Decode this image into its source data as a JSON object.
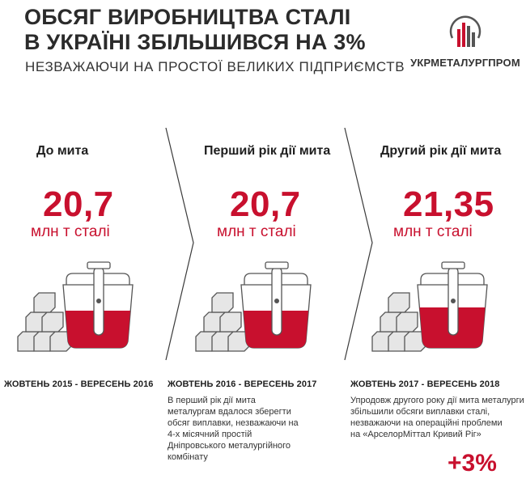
{
  "header": {
    "title_line1": "ОБСЯГ ВИРОБНИЦТВА СТАЛІ",
    "title_line2": "В УКРАЇНІ ЗБІЛЬШИВСЯ НА 3%",
    "subtitle": "НЕЗВАЖАЮЧИ НА ПРОСТОЇ ВЕЛИКИХ ПІДПРИЄМСТВ"
  },
  "logo": {
    "name": "УКРМЕТАЛУРГПРОМ",
    "icon": "ukrmetalurgprom-logo-icon",
    "color": "#c8102e"
  },
  "columns": [
    {
      "title": "До мита",
      "value": "20,7",
      "unit": "млн т сталі",
      "period": "ЖОВТЕНЬ 2015 - ВЕРЕСЕНЬ 2016",
      "description": []
    },
    {
      "title": "Перший рік дії мита",
      "value": "20,7",
      "unit": "млн т сталі",
      "period": "ЖОВТЕНЬ 2016 - ВЕРЕСЕНЬ 2017",
      "description": [
        "В перший рік дії мита",
        "металургам вдалося зберегти",
        "обсяг виплавки, незважаючи на",
        "4-х місячний простій",
        "Дніпровського металургійного",
        "комбінату"
      ]
    },
    {
      "title": "Другий рік дії мита",
      "value": "21,35",
      "unit": "млн т сталі",
      "period": "ЖОВТЕНЬ 2017 - ВЕРЕСЕНЬ 2018",
      "description": [
        "Упродовж другого року дії мита металурги",
        "збільшили обсяги виплавки сталі,",
        "незважаючи на операційні проблеми",
        "на «АрселорМіттал Кривий Ріг»"
      ]
    }
  ],
  "growth": "+3%",
  "colors": {
    "accent": "#c8102e",
    "text": "#1e1e1e",
    "outline": "#555555",
    "block_fill": "#e6e6e6"
  }
}
